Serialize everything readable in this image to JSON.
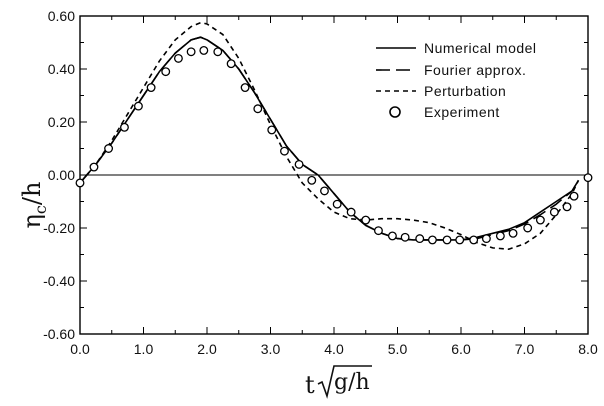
{
  "chart_data": {
    "type": "line",
    "xlabel_main": "t",
    "xlabel_root": "g/h",
    "ylabel_main": "η",
    "ylabel_sub": "c",
    "ylabel_tail": "/h",
    "xlim": [
      0.0,
      8.0
    ],
    "ylim": [
      -0.6,
      0.6
    ],
    "x_tick_labels": [
      "0.0",
      "1.0",
      "2.0",
      "3.0",
      "4.0",
      "5.0",
      "6.0",
      "7.0",
      "8.0"
    ],
    "y_tick_labels": [
      "0.60",
      "0.40",
      "0.20",
      "0.00",
      "-0.20",
      "-0.40",
      "-0.60"
    ],
    "legend": {
      "position": "top-right",
      "entries": [
        {
          "label": "Numerical model",
          "style": "solid"
        },
        {
          "label": "Fourier approx.",
          "style": "long-dash"
        },
        {
          "label": "Perturbation",
          "style": "short-dash"
        },
        {
          "label": "Experiment",
          "style": "circle"
        }
      ]
    },
    "series": [
      {
        "name": "Numerical model",
        "style": "solid",
        "x": [
          0.0,
          0.25,
          0.5,
          0.75,
          1.0,
          1.25,
          1.5,
          1.75,
          1.9,
          2.0,
          2.25,
          2.5,
          2.75,
          3.0,
          3.25,
          3.5,
          3.75,
          4.0,
          4.25,
          4.5,
          4.75,
          5.0,
          5.25,
          5.5,
          5.75,
          6.0,
          6.25,
          6.5,
          6.75,
          7.0,
          7.25,
          7.5,
          7.75,
          7.85
        ],
        "y": [
          -0.03,
          0.04,
          0.12,
          0.21,
          0.3,
          0.39,
          0.46,
          0.51,
          0.52,
          0.51,
          0.47,
          0.4,
          0.31,
          0.21,
          0.11,
          0.04,
          0.0,
          -0.07,
          -0.14,
          -0.19,
          -0.22,
          -0.24,
          -0.245,
          -0.245,
          -0.245,
          -0.245,
          -0.235,
          -0.22,
          -0.205,
          -0.18,
          -0.14,
          -0.1,
          -0.06,
          -0.02
        ]
      },
      {
        "name": "Fourier approx.",
        "style": "long-dash",
        "x": [
          0.0,
          0.25,
          0.5,
          0.75,
          1.0,
          1.25,
          1.5,
          1.75,
          1.9,
          2.0,
          2.25,
          2.5,
          2.75,
          3.0,
          3.25,
          3.5,
          3.75,
          4.0,
          4.25,
          4.5,
          4.75,
          5.0,
          5.25,
          5.5,
          5.75,
          6.0,
          6.25,
          6.5,
          6.75,
          7.0,
          7.25,
          7.5,
          7.75,
          7.85
        ],
        "y": [
          -0.03,
          0.04,
          0.12,
          0.21,
          0.3,
          0.39,
          0.46,
          0.51,
          0.52,
          0.51,
          0.47,
          0.4,
          0.31,
          0.21,
          0.11,
          0.04,
          0.0,
          -0.07,
          -0.14,
          -0.19,
          -0.22,
          -0.24,
          -0.245,
          -0.245,
          -0.245,
          -0.245,
          -0.24,
          -0.225,
          -0.21,
          -0.185,
          -0.15,
          -0.11,
          -0.06,
          -0.02
        ]
      },
      {
        "name": "Perturbation",
        "style": "short-dash",
        "x": [
          0.0,
          0.25,
          0.5,
          0.75,
          1.0,
          1.25,
          1.5,
          1.75,
          1.9,
          2.0,
          2.25,
          2.5,
          2.75,
          3.0,
          3.25,
          3.5,
          3.75,
          4.0,
          4.25,
          4.5,
          4.75,
          5.0,
          5.25,
          5.5,
          5.75,
          6.0,
          6.25,
          6.5,
          6.75,
          7.0,
          7.25,
          7.5,
          7.75,
          7.85
        ],
        "y": [
          -0.03,
          0.04,
          0.13,
          0.23,
          0.33,
          0.43,
          0.51,
          0.56,
          0.575,
          0.57,
          0.53,
          0.44,
          0.32,
          0.19,
          0.07,
          -0.03,
          -0.09,
          -0.14,
          -0.165,
          -0.17,
          -0.165,
          -0.165,
          -0.17,
          -0.18,
          -0.2,
          -0.225,
          -0.255,
          -0.275,
          -0.28,
          -0.26,
          -0.22,
          -0.15,
          -0.07,
          -0.02
        ]
      }
    ],
    "experiment_points": {
      "name": "Experiment",
      "x": [
        0.0,
        0.22,
        0.45,
        0.7,
        0.92,
        1.12,
        1.35,
        1.55,
        1.75,
        1.95,
        2.17,
        2.38,
        2.6,
        2.8,
        3.02,
        3.22,
        3.45,
        3.65,
        3.85,
        4.05,
        4.27,
        4.5,
        4.7,
        4.92,
        5.12,
        5.35,
        5.55,
        5.78,
        5.98,
        6.2,
        6.4,
        6.62,
        6.82,
        7.05,
        7.25,
        7.47,
        7.67,
        7.78,
        8.0
      ],
      "y": [
        -0.03,
        0.03,
        0.1,
        0.18,
        0.26,
        0.33,
        0.39,
        0.44,
        0.465,
        0.47,
        0.465,
        0.42,
        0.33,
        0.25,
        0.17,
        0.09,
        0.04,
        -0.02,
        -0.06,
        -0.11,
        -0.14,
        -0.17,
        -0.21,
        -0.23,
        -0.235,
        -0.24,
        -0.245,
        -0.245,
        -0.245,
        -0.245,
        -0.24,
        -0.23,
        -0.22,
        -0.2,
        -0.17,
        -0.14,
        -0.12,
        -0.08,
        -0.01
      ]
    },
    "grid": false
  }
}
